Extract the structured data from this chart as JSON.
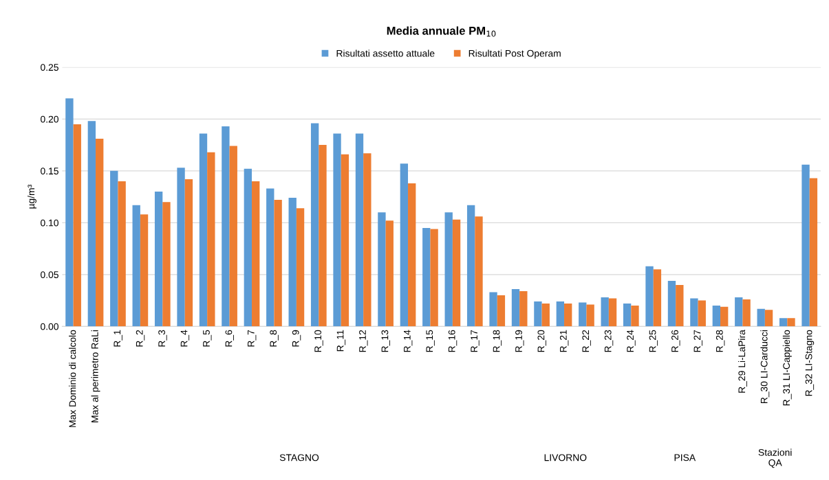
{
  "chart_data": {
    "type": "bar",
    "title": "Media annuale PM$_{10}$",
    "ylabel": "µg/m³",
    "categories": [
      "Max Dominio di calcolo",
      "Max al perimetro RaLi",
      "R_1",
      "R_2",
      "R_3",
      "R_4",
      "R_5",
      "R_6",
      "R_7",
      "R_8",
      "R_9",
      "R_10",
      "R_11",
      "R_12",
      "R_13",
      "R_14",
      "R_15",
      "R_16",
      "R_17",
      "R_18",
      "R_19",
      "R_20",
      "R_21",
      "R_22",
      "R_23",
      "R_24",
      "R_25",
      "R_26",
      "R_27",
      "R_28",
      "R_29 Li-LaPira",
      "R_30 LI-Carducci",
      "R_31 LI-Cappiello",
      "R_32 LI-Stagno"
    ],
    "series": [
      {
        "name": "Risultati assetto attuale",
        "color": "#5b9bd5",
        "values": [
          0.22,
          0.198,
          0.15,
          0.117,
          0.13,
          0.153,
          0.186,
          0.193,
          0.152,
          0.133,
          0.124,
          0.196,
          0.186,
          0.186,
          0.11,
          0.157,
          0.095,
          0.11,
          0.117,
          0.033,
          0.036,
          0.024,
          0.024,
          0.023,
          0.028,
          0.022,
          0.058,
          0.044,
          0.027,
          0.02,
          0.028,
          0.017,
          0.008,
          0.156
        ]
      },
      {
        "name": "Risultati Post Operam",
        "color": "#ed7d31",
        "values": [
          0.195,
          0.181,
          0.14,
          0.108,
          0.12,
          0.142,
          0.168,
          0.174,
          0.14,
          0.122,
          0.114,
          0.175,
          0.166,
          0.167,
          0.102,
          0.138,
          0.094,
          0.103,
          0.106,
          0.03,
          0.034,
          0.022,
          0.022,
          0.021,
          0.027,
          0.02,
          0.055,
          0.04,
          0.025,
          0.019,
          0.026,
          0.016,
          0.008,
          0.143
        ]
      }
    ],
    "ylim": [
      0,
      0.25
    ],
    "yticks": [
      {
        "value": 0,
        "label": "0.00"
      },
      {
        "value": 0.05,
        "label": "0.05"
      },
      {
        "value": 0.1,
        "label": "0.10"
      },
      {
        "value": 0.15,
        "label": "0.15"
      },
      {
        "value": 0.2,
        "label": "0.20"
      },
      {
        "value": 0.25,
        "label": "0.25"
      }
    ],
    "grid": "y",
    "legend": "top",
    "annotations": [
      "STAGNO",
      "LIVORNO",
      "PISA",
      "Stazioni\nQA"
    ]
  }
}
